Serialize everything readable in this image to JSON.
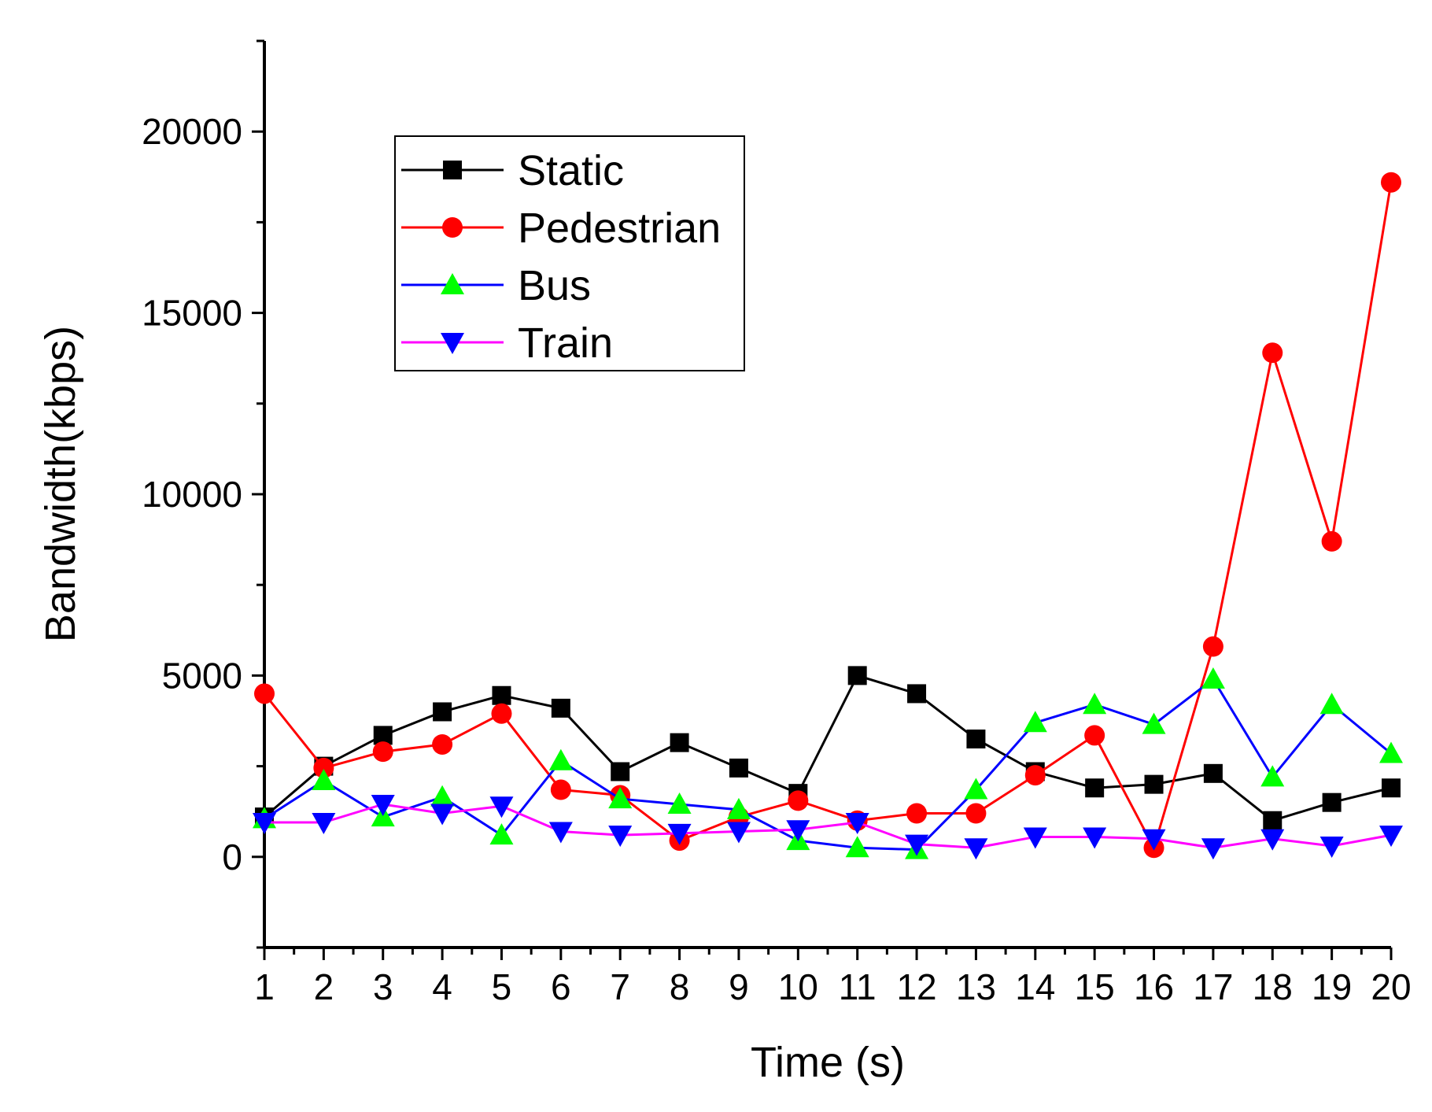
{
  "chart_data": {
    "type": "line",
    "title": "",
    "xlabel": "Time (s)",
    "ylabel": "Bandwidth(kbps)",
    "xlim": [
      1,
      20
    ],
    "ylim": [
      -2500,
      22500
    ],
    "x": [
      1,
      2,
      3,
      4,
      5,
      6,
      7,
      8,
      9,
      10,
      11,
      12,
      13,
      14,
      15,
      16,
      17,
      18,
      19,
      20
    ],
    "x_tick_labels": [
      "1",
      "2",
      "3",
      "4",
      "5",
      "6",
      "7",
      "8",
      "9",
      "10",
      "11",
      "12",
      "13",
      "14",
      "15",
      "16",
      "17",
      "18",
      "19",
      "20"
    ],
    "y_ticks": [
      0,
      5000,
      10000,
      15000,
      20000
    ],
    "y_tick_labels": [
      "0",
      "5000",
      "10000",
      "15000",
      "20000"
    ],
    "legend_position": "upper-left",
    "series": [
      {
        "name": "Static",
        "color": "#000000",
        "marker": "square",
        "values": [
          1100,
          2500,
          3350,
          4000,
          4450,
          4100,
          2350,
          3150,
          2450,
          1750,
          5000,
          4500,
          3250,
          2350,
          1900,
          2000,
          2300,
          1000,
          1500,
          1900
        ]
      },
      {
        "name": "Pedestrian",
        "color": "#ff0000",
        "marker": "circle",
        "values": [
          4500,
          2450,
          2900,
          3100,
          3950,
          1850,
          1700,
          450,
          1100,
          1550,
          1000,
          1200,
          1200,
          2250,
          3350,
          250,
          5800,
          13900,
          8700,
          18600
        ]
      },
      {
        "name": "Bus",
        "color": "#0000ff",
        "marker_fill": "#00ff00",
        "marker": "triangle-up",
        "values": [
          1050,
          2100,
          1100,
          1650,
          600,
          2650,
          1600,
          1450,
          1300,
          450,
          250,
          200,
          1850,
          3700,
          4200,
          3650,
          4900,
          2200,
          4200,
          2850
        ]
      },
      {
        "name": "Train",
        "color": "#ff00ff",
        "marker_fill": "#0000ff",
        "marker": "triangle-down",
        "values": [
          950,
          950,
          1450,
          1200,
          1400,
          700,
          600,
          650,
          700,
          750,
          950,
          350,
          250,
          550,
          550,
          500,
          250,
          500,
          300,
          600
        ]
      }
    ]
  }
}
